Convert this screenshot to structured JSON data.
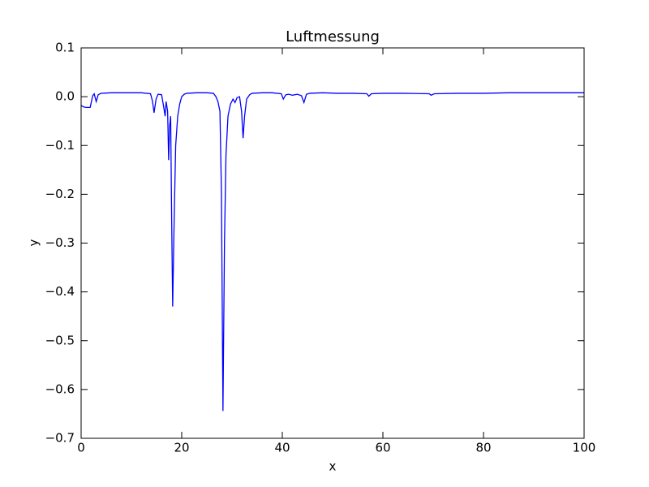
{
  "chart_data": {
    "type": "line",
    "title": "Luftmessung",
    "x_label": "x",
    "y_label": "y",
    "x": [
      0,
      0.5,
      1,
      1.8,
      2.3,
      2.6,
      3.0,
      3.4,
      4,
      6,
      8,
      10,
      12,
      13.8,
      14.2,
      14.5,
      14.9,
      15.3,
      16,
      16.4,
      16.7,
      16.9,
      17.2,
      17.4,
      17.6,
      17.8,
      18.0,
      18.2,
      18.5,
      18.8,
      19.2,
      19.6,
      20,
      20.5,
      21,
      23,
      25,
      26.3,
      26.8,
      27.2,
      27.6,
      27.9,
      28.2,
      28.5,
      28.8,
      29.2,
      29.7,
      30.2,
      30.6,
      31.0,
      31.5,
      31.9,
      32.2,
      32.5,
      32.9,
      33.5,
      34,
      36,
      38,
      39.8,
      40.2,
      40.7,
      41.3,
      42,
      43,
      43.8,
      44.3,
      44.8,
      45.5,
      48,
      51,
      54,
      56.8,
      57.2,
      57.7,
      60,
      64,
      69.2,
      69.6,
      70.2,
      75,
      80,
      85,
      90,
      95,
      100
    ],
    "series": [
      {
        "name": "Luftmessung",
        "color": "#0000ff",
        "values": [
          -0.018,
          -0.021,
          -0.022,
          -0.022,
          0.002,
          0.006,
          -0.01,
          0.004,
          0.007,
          0.008,
          0.008,
          0.008,
          0.008,
          0.006,
          -0.01,
          -0.033,
          -0.005,
          0.005,
          0.004,
          -0.02,
          -0.04,
          -0.01,
          -0.03,
          -0.13,
          -0.06,
          -0.04,
          -0.25,
          -0.43,
          -0.25,
          -0.1,
          -0.04,
          -0.015,
          0.0,
          0.005,
          0.007,
          0.008,
          0.008,
          0.007,
          0.0,
          -0.01,
          -0.03,
          -0.2,
          -0.644,
          -0.3,
          -0.12,
          -0.04,
          -0.015,
          -0.005,
          -0.012,
          -0.002,
          0.0,
          -0.03,
          -0.085,
          -0.04,
          -0.005,
          0.004,
          0.007,
          0.008,
          0.008,
          0.006,
          -0.005,
          0.004,
          0.005,
          0.003,
          0.005,
          0.002,
          -0.012,
          0.005,
          0.007,
          0.008,
          0.007,
          0.007,
          0.006,
          0.001,
          0.006,
          0.007,
          0.007,
          0.006,
          0.003,
          0.006,
          0.007,
          0.007,
          0.008,
          0.008,
          0.008,
          0.008
        ]
      }
    ],
    "xlim": [
      0,
      100
    ],
    "ylim": [
      -0.7,
      0.1
    ],
    "xticks": [
      0,
      20,
      40,
      60,
      80,
      100
    ],
    "yticks": [
      {
        "value": -0.7,
        "label": "−0.7"
      },
      {
        "value": -0.6,
        "label": "−0.6"
      },
      {
        "value": -0.5,
        "label": "−0.5"
      },
      {
        "value": -0.4,
        "label": "−0.4"
      },
      {
        "value": -0.3,
        "label": "−0.3"
      },
      {
        "value": -0.2,
        "label": "−0.2"
      },
      {
        "value": -0.1,
        "label": "−0.1"
      },
      {
        "value": 0,
        "label": "0.0"
      },
      0.1
    ],
    "grid": false
  }
}
